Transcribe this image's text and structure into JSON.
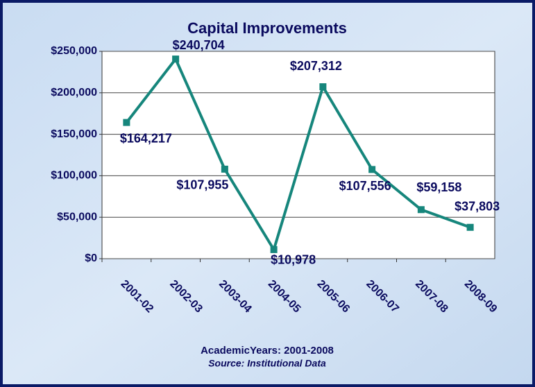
{
  "chart_data": {
    "type": "line",
    "title": "Capital Improvements",
    "categories": [
      "2001-02",
      "2002-03",
      "2003-04",
      "2004-05",
      "2005-06",
      "2006-07",
      "2007-08",
      "2008-09"
    ],
    "series": [
      {
        "name": "Capital Improvements",
        "color": "#16867c",
        "values": [
          164217,
          240704,
          107955,
          10978,
          207312,
          107556,
          59158,
          37803
        ],
        "value_labels": [
          "$164,217",
          "$240,704",
          "$107,955",
          "$10,978",
          "$207,312",
          "$107,556",
          "$59,158",
          "$37,803"
        ]
      }
    ],
    "ylim": [
      0,
      250000
    ],
    "yticks": [
      {
        "value": 0,
        "label": "$0"
      },
      {
        "value": 50000,
        "label": "$50,000"
      },
      {
        "value": 100000,
        "label": "$100,000"
      },
      {
        "value": 150000,
        "label": "$150,000"
      },
      {
        "value": 200000,
        "label": "$200,000"
      },
      {
        "value": 250000,
        "label": "$250,000"
      }
    ],
    "grid": true,
    "x_label": "AcademicYears: 2001-2008",
    "source": "Source: Institutional Data"
  }
}
